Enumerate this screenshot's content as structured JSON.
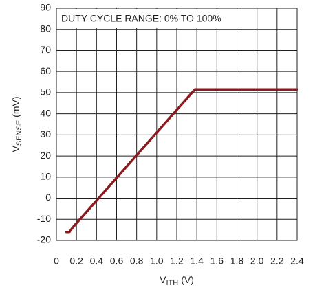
{
  "chart_data": {
    "type": "line",
    "annotation": "DUTY CYCLE RANGE: 0% TO 100%",
    "xlabel": {
      "main": "V",
      "sub": "ITH",
      "unit": "(V)"
    },
    "ylabel": {
      "main": "V",
      "sub": "SENSE",
      "unit": "(mV)"
    },
    "x": [
      0.1,
      0.13,
      0.16,
      1.38,
      1.4,
      2.4
    ],
    "series": [
      {
        "color": "#8b1a1f",
        "values": [
          -16,
          -16,
          -14,
          51.5,
          51.5,
          51.5
        ]
      }
    ],
    "xlim": [
      0,
      2.4
    ],
    "ylim": [
      -20,
      90
    ],
    "xticks": [
      0,
      0.2,
      0.4,
      0.6,
      0.8,
      {
        "value": 1,
        "label": "1.0"
      },
      1.2,
      1.4,
      1.6,
      1.8,
      {
        "value": 2,
        "label": "2.0"
      },
      2.2,
      2.4
    ],
    "yticks": [
      -20,
      -10,
      0,
      10,
      20,
      30,
      40,
      50,
      60,
      70,
      80,
      90
    ],
    "grid": true
  }
}
